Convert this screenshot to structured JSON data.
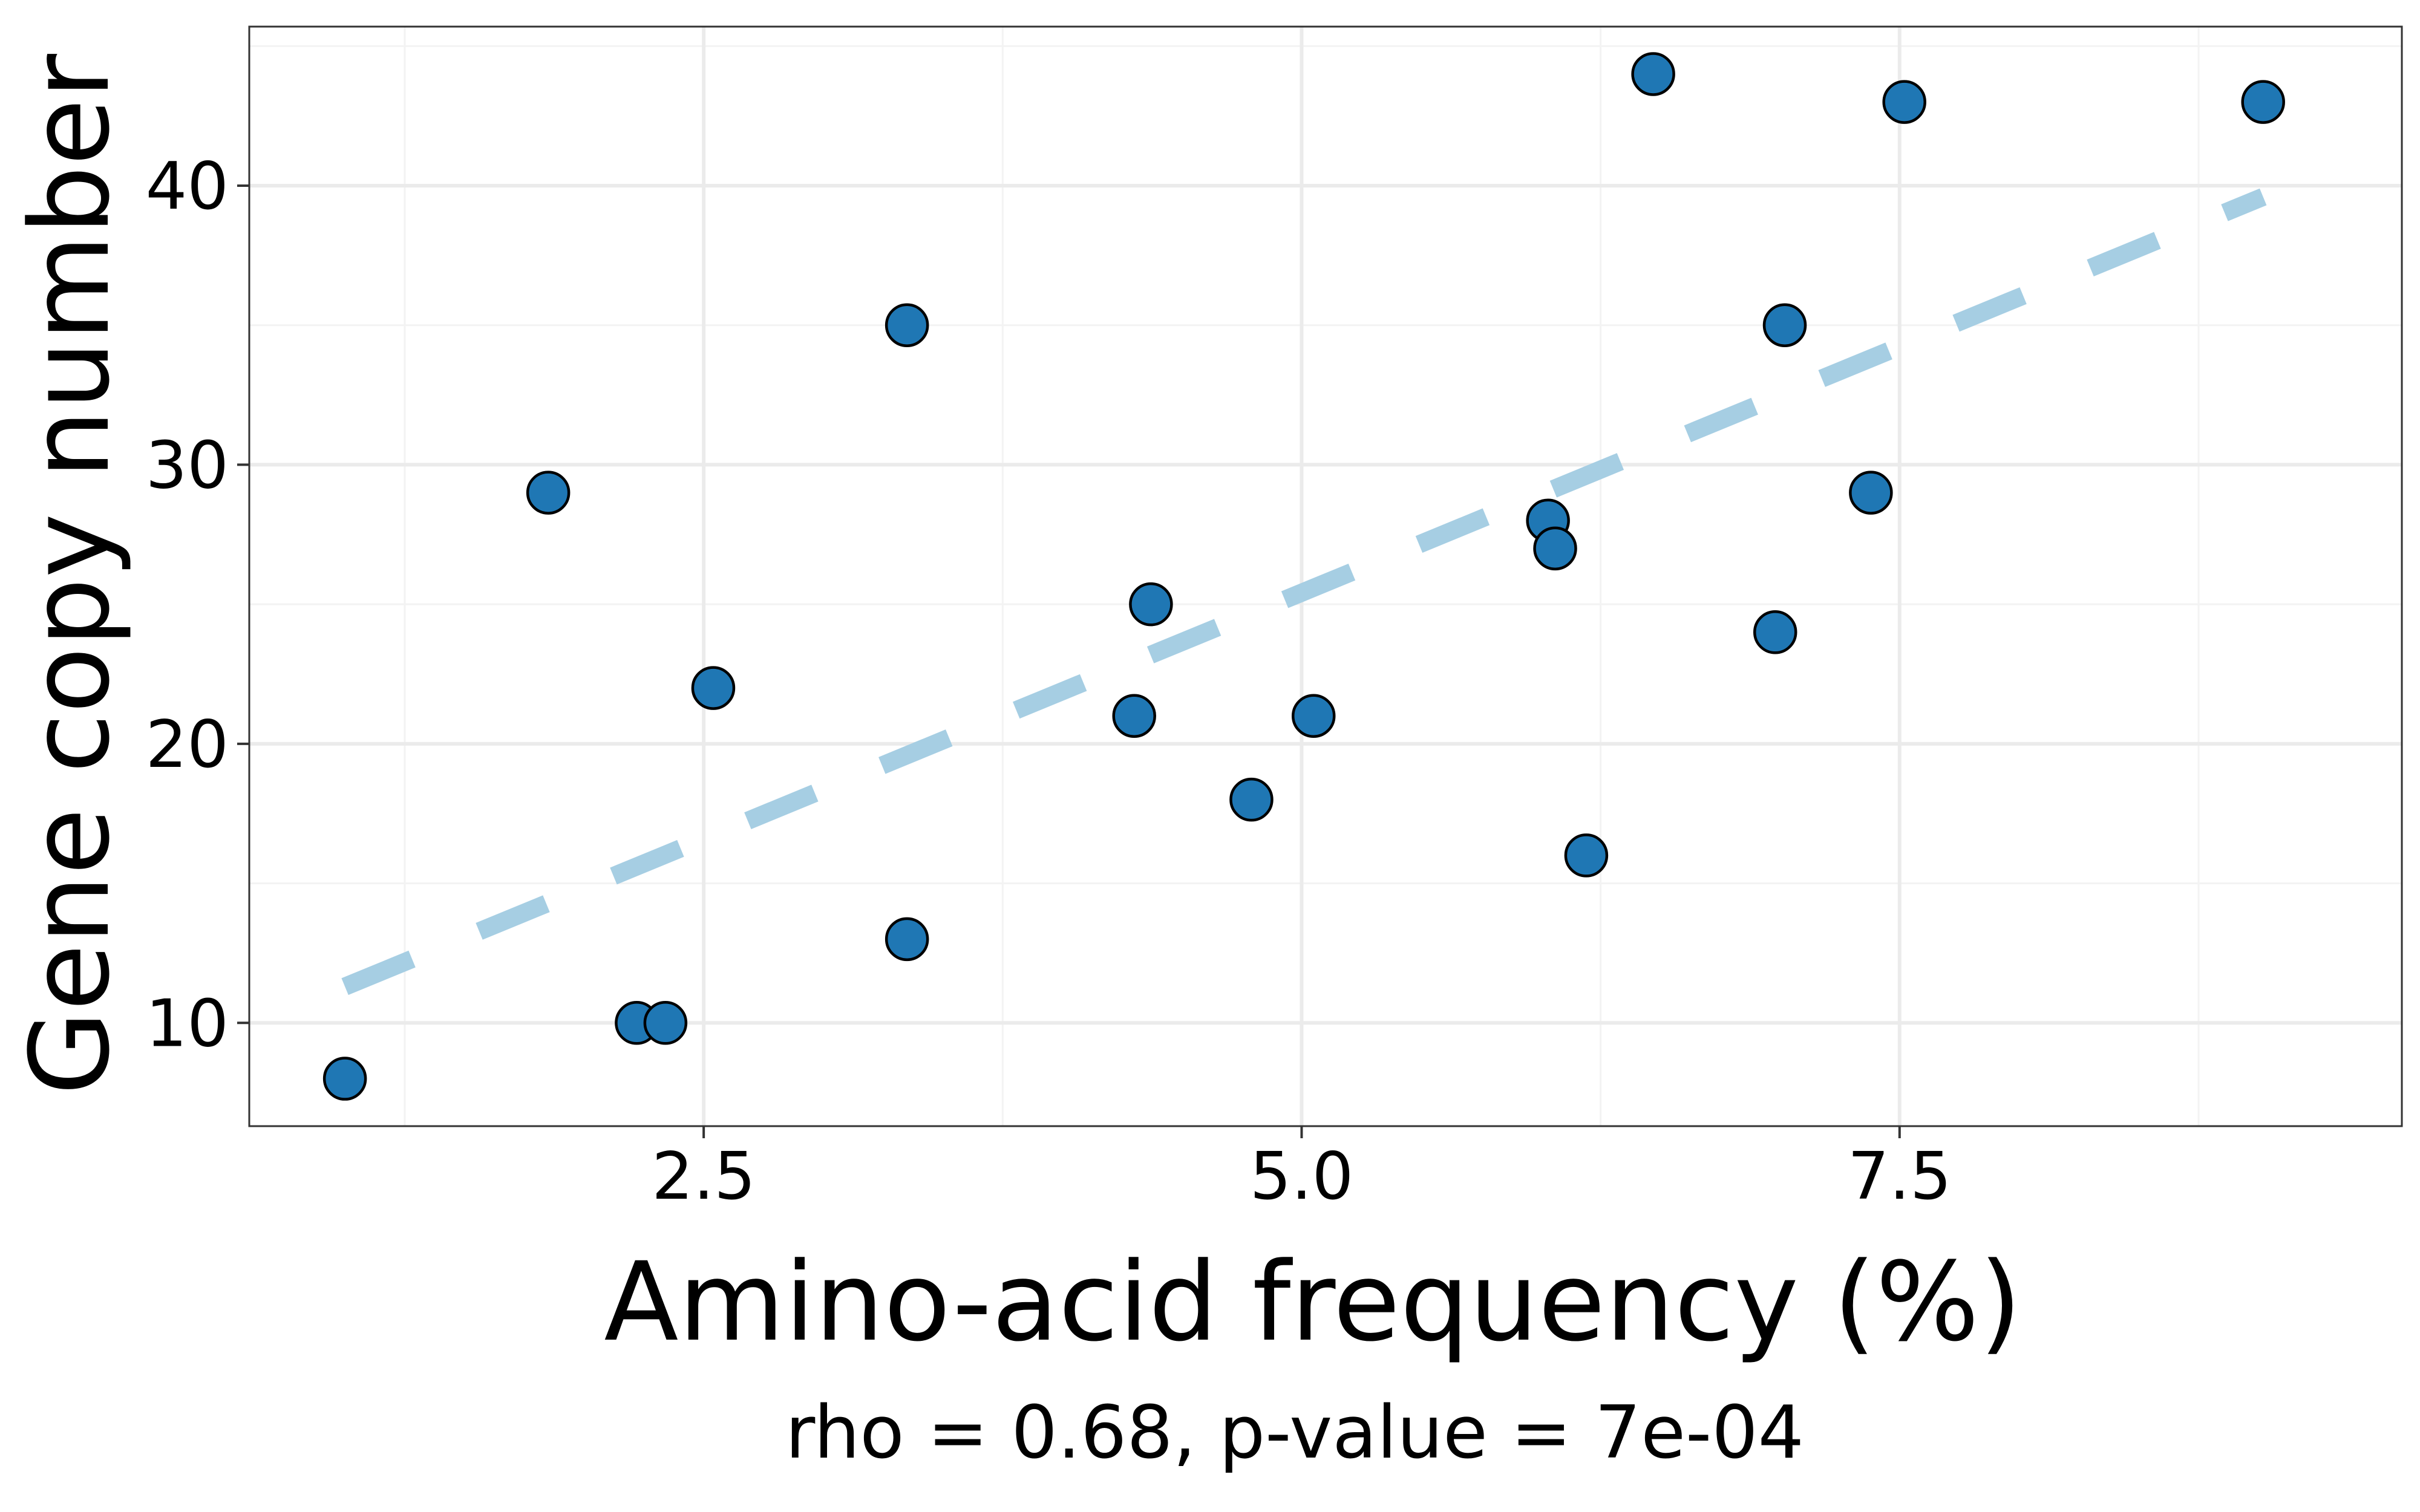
{
  "chart_data": {
    "type": "scatter",
    "xlabel": "Amino-acid frequency (%)",
    "ylabel": "Gene copy number",
    "subtitle": "rho = 0.68, p-value = 7e-04",
    "xlim": [
      0.6,
      9.6
    ],
    "ylim": [
      6.3,
      45.7
    ],
    "x_ticks": [
      2.5,
      5.0,
      7.5
    ],
    "x_tick_labels": [
      "2.5",
      "5.0",
      "7.5"
    ],
    "x_minor_ticks": [
      1.25,
      3.75,
      6.25,
      8.75
    ],
    "y_ticks": [
      10,
      20,
      30,
      40
    ],
    "y_tick_labels": [
      "10",
      "20",
      "30",
      "40"
    ],
    "y_minor_ticks": [
      15,
      25,
      35,
      45
    ],
    "grid": true,
    "points": [
      {
        "x": 1.0,
        "y": 8
      },
      {
        "x": 1.85,
        "y": 29
      },
      {
        "x": 2.22,
        "y": 10
      },
      {
        "x": 2.34,
        "y": 10
      },
      {
        "x": 2.54,
        "y": 22
      },
      {
        "x": 3.35,
        "y": 35
      },
      {
        "x": 3.35,
        "y": 13
      },
      {
        "x": 4.3,
        "y": 21
      },
      {
        "x": 4.37,
        "y": 25
      },
      {
        "x": 4.79,
        "y": 18
      },
      {
        "x": 5.05,
        "y": 21
      },
      {
        "x": 6.03,
        "y": 28
      },
      {
        "x": 6.06,
        "y": 27
      },
      {
        "x": 6.19,
        "y": 16
      },
      {
        "x": 6.47,
        "y": 44
      },
      {
        "x": 6.98,
        "y": 24
      },
      {
        "x": 7.02,
        "y": 35
      },
      {
        "x": 7.38,
        "y": 29
      },
      {
        "x": 7.52,
        "y": 43
      },
      {
        "x": 9.02,
        "y": 43
      }
    ],
    "trend_line": {
      "x": [
        1.0,
        9.02
      ],
      "y": [
        11.3,
        39.6
      ],
      "style": "dashed"
    },
    "colors": {
      "point_fill": "#1f77b4",
      "point_stroke": "#000000",
      "trend_line": "#a6cee3",
      "grid_major": "#ebebeb",
      "grid_minor": "#f3f3f3",
      "panel_border": "#333333"
    }
  }
}
